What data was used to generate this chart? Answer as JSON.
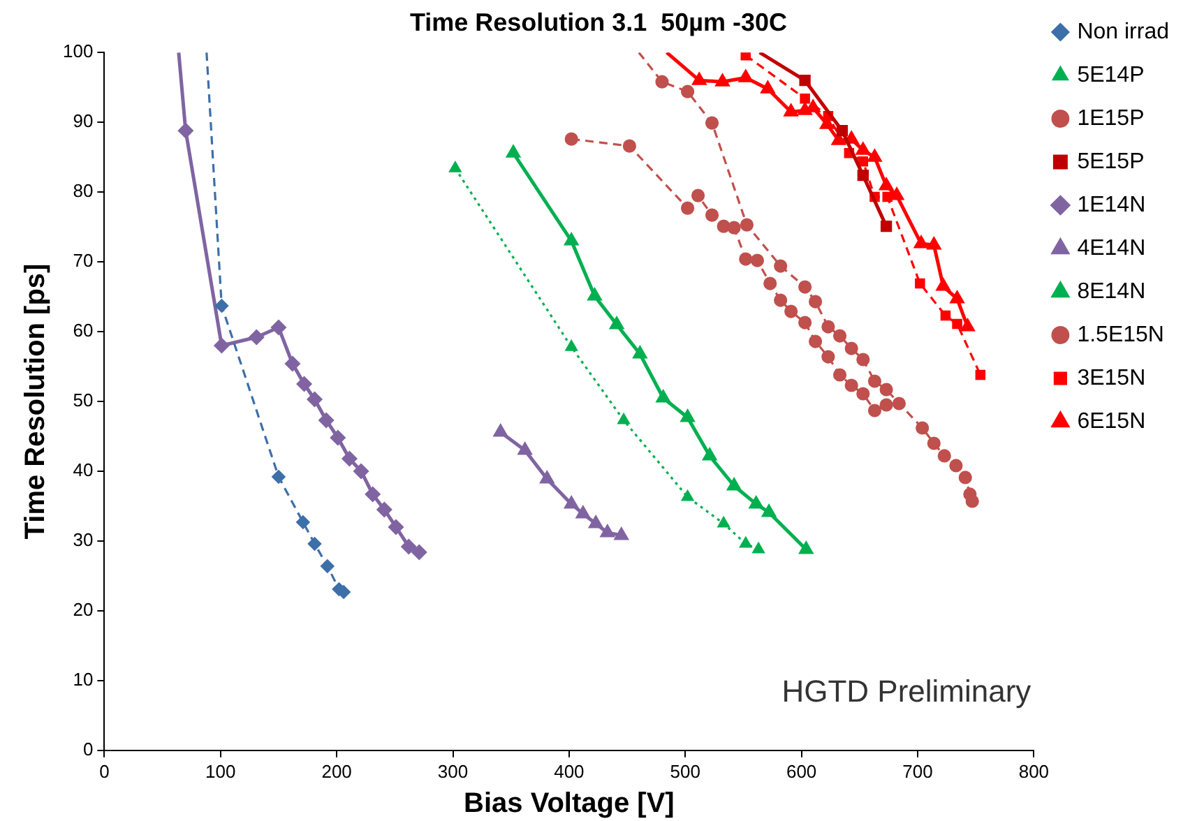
{
  "chart_data": {
    "type": "line",
    "title": "Time Resolution 3.1  50µm -30C",
    "xlabel": "Bias Voltage [V]",
    "ylabel": "Time Resolution [ps]",
    "xlim": [
      0,
      800
    ],
    "xticks": [
      0,
      100,
      200,
      300,
      400,
      500,
      600,
      700,
      800
    ],
    "ylim": [
      0,
      100
    ],
    "yticks": [
      0,
      10,
      20,
      30,
      40,
      50,
      60,
      70,
      80,
      90,
      100
    ],
    "grid": false,
    "legend": "right",
    "annotations": [
      "HGTD Preliminary"
    ],
    "series": [
      {
        "name": "Non irrad",
        "color": "#3d6fa8",
        "marker": "diamond",
        "line_style": "dashed",
        "x": [
          88,
          101,
          150,
          171,
          181,
          192,
          202,
          206
        ],
        "values": [
          100,
          63.7,
          39.2,
          32.7,
          29.6,
          26.4,
          23.1,
          22.7
        ]
      },
      {
        "name": "5E14P",
        "color": "#00b050",
        "marker": "triangle",
        "line_style": "dotted",
        "x": [
          302,
          402,
          447,
          502,
          533,
          552,
          563
        ],
        "values": [
          83.4,
          57.8,
          47.3,
          36.3,
          32.5,
          29.6,
          28.8
        ]
      },
      {
        "name": "1E15P",
        "color": "#c0504d",
        "marker": "circle",
        "line_style": "dashed",
        "x": [
          402,
          452,
          502,
          511,
          523,
          533,
          542,
          552,
          562,
          573,
          582,
          591,
          603,
          612,
          623,
          633,
          643,
          653,
          663,
          673
        ],
        "values": [
          87.6,
          86.6,
          77.7,
          79.5,
          76.7,
          75.1,
          74.9,
          70.4,
          70.2,
          66.9,
          64.5,
          62.9,
          61.3,
          58.6,
          56.4,
          53.8,
          52.3,
          51.1,
          48.7,
          49.5
        ]
      },
      {
        "name": "5E15P",
        "color": "#c00000",
        "marker": "square",
        "line_style": "solid",
        "x": [
          564,
          603,
          635,
          653,
          673
        ],
        "values": [
          100,
          96.0,
          88.8,
          82.4,
          75.1
        ]
      },
      {
        "name": "1E14N",
        "color": "#8064a2",
        "marker": "diamond",
        "line_style": "solid",
        "x": [
          64,
          70,
          101,
          131,
          150,
          162,
          172,
          181,
          191,
          201,
          211,
          221,
          231,
          241,
          251,
          262,
          271
        ],
        "values": [
          100,
          88.8,
          58.0,
          59.2,
          60.6,
          55.4,
          52.5,
          50.3,
          47.3,
          44.8,
          41.8,
          40.0,
          36.7,
          34.5,
          32.0,
          29.2,
          28.4
        ]
      },
      {
        "name": "4E14N",
        "color": "#8064a2",
        "marker": "triangle",
        "line_style": "solid",
        "x": [
          341,
          362,
          381,
          402,
          412,
          423,
          433,
          445
        ],
        "values": [
          45.6,
          43.0,
          38.9,
          35.3,
          33.9,
          32.5,
          31.2,
          30.8
        ]
      },
      {
        "name": "8E14N",
        "color": "#00b050",
        "marker": "triangle",
        "line_style": "solid",
        "x": [
          352,
          402,
          422,
          441,
          461,
          481,
          502,
          521,
          542,
          561,
          572,
          604
        ],
        "values": [
          85.6,
          73.0,
          65.1,
          61.0,
          56.8,
          50.5,
          47.7,
          42.2,
          37.9,
          35.3,
          34.1,
          28.8
        ]
      },
      {
        "name": "1.5E15N",
        "color": "#c0504d",
        "marker": "circle",
        "line_style": "dashed",
        "x": [
          460,
          480,
          502,
          523,
          553,
          582,
          603,
          612,
          623,
          633,
          643,
          653,
          663,
          673,
          684,
          704,
          714,
          723,
          733,
          741,
          745,
          747
        ],
        "values": [
          100,
          95.8,
          94.4,
          89.9,
          75.3,
          69.4,
          66.4,
          64.3,
          60.7,
          59.4,
          57.6,
          56.0,
          52.9,
          51.7,
          49.7,
          46.2,
          44.0,
          42.2,
          40.8,
          39.1,
          36.7,
          35.7
        ]
      },
      {
        "name": "3E15N",
        "color": "#ff0000",
        "marker": "square",
        "line_style": "dashed",
        "x": [
          552,
          603,
          623,
          641,
          653,
          663,
          674,
          702,
          724,
          734,
          754
        ],
        "values": [
          99.6,
          93.4,
          90.9,
          85.6,
          84.4,
          79.3,
          79.3,
          66.9,
          62.3,
          61.1,
          53.8
        ]
      },
      {
        "name": "6E15N",
        "color": "#ff0000",
        "marker": "triangle",
        "line_style": "solid",
        "x": [
          484,
          512,
          532,
          552,
          571,
          591,
          603,
          610,
          622,
          632,
          643,
          653,
          663,
          673,
          682,
          703,
          714,
          722,
          734,
          743
        ],
        "values": [
          100,
          96.0,
          95.8,
          96.4,
          94.8,
          91.5,
          91.7,
          92.1,
          89.7,
          87.4,
          87.6,
          86.0,
          85.0,
          80.9,
          79.5,
          72.6,
          72.4,
          66.5,
          64.7,
          60.7
        ]
      }
    ]
  }
}
